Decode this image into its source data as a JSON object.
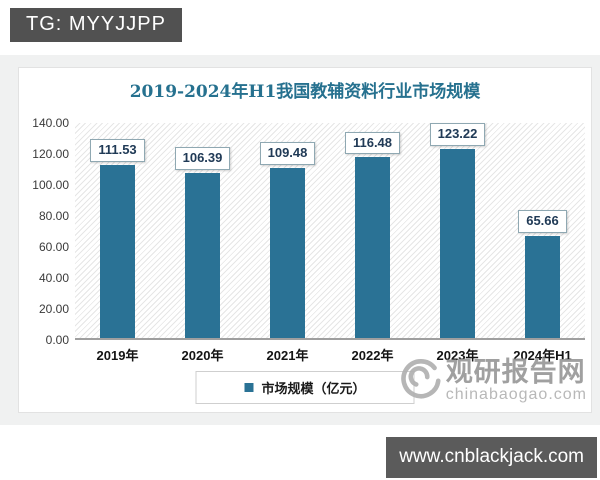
{
  "badges": {
    "tg": "TG: MYYJJPP",
    "site": "www.cnblackjack.com"
  },
  "chart_data": {
    "type": "bar",
    "title": "2019-2024年H1我国教辅资料行业市场规模",
    "categories": [
      "2019年",
      "2020年",
      "2021年",
      "2022年",
      "2023年",
      "2024年H1"
    ],
    "series": [
      {
        "name": "市场规模（亿元）",
        "values": [
          111.53,
          106.39,
          109.48,
          116.48,
          123.22,
          65.66
        ]
      }
    ],
    "value_label_decimals": 2,
    "ylim": [
      0,
      140
    ],
    "ytick_labels": [
      "140.00",
      "120.00",
      "100.00",
      "80.00",
      "60.00",
      "40.00",
      "20.00",
      "0.00"
    ],
    "grid": false,
    "legend_position": "bottom",
    "bar_color": "#2a7295",
    "plot_background": "diagonal-hatch"
  },
  "watermark": {
    "name": "观研报告网",
    "domain": "chinabaogao.com"
  }
}
